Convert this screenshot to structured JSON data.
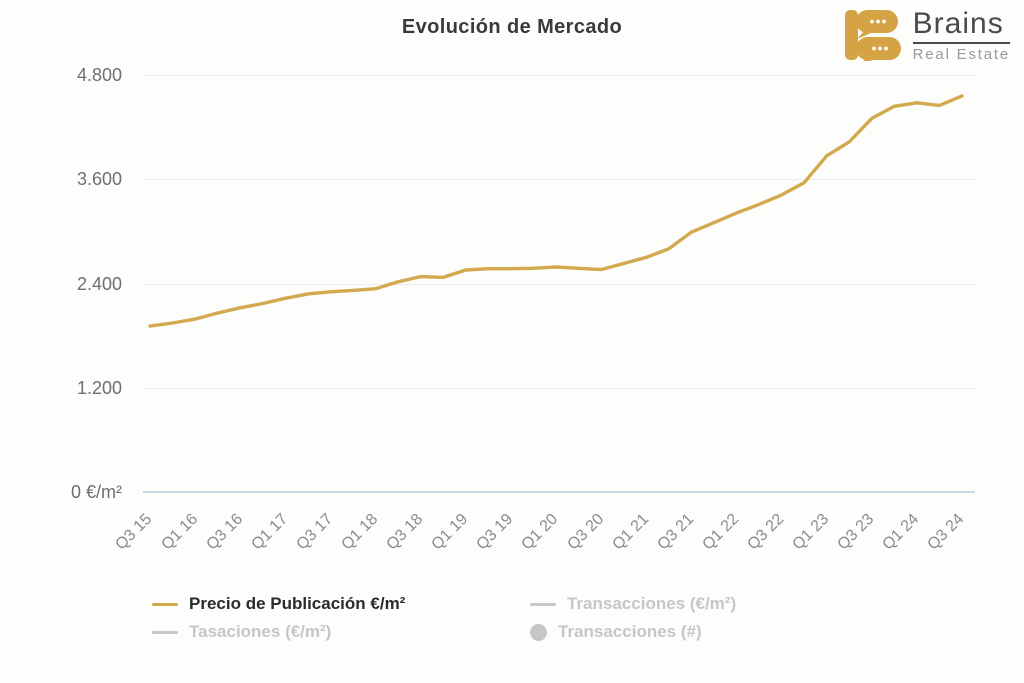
{
  "brand": {
    "name": "Brains",
    "tagline": "Real Estate",
    "logo_color": "#D5A344"
  },
  "chart_data": {
    "type": "line",
    "title": "Evolución de Mercado",
    "ylim": [
      0,
      4800
    ],
    "grid": true,
    "legend_position": "bottom",
    "y_ticks": [
      {
        "value": 4800,
        "label": "4.800"
      },
      {
        "value": 3600,
        "label": "3.600"
      },
      {
        "value": 2400,
        "label": "2.400"
      },
      {
        "value": 1200,
        "label": "1.200"
      },
      {
        "value": 0,
        "label": "0 €/m²"
      }
    ],
    "x_tick_labels": [
      "Q3 15",
      "Q1 16",
      "Q3 16",
      "Q1 17",
      "Q3 17",
      "Q1 18",
      "Q3 18",
      "Q1 19",
      "Q3 19",
      "Q1 20",
      "Q3 20",
      "Q1 21",
      "Q3 21",
      "Q1 22",
      "Q3 22",
      "Q1 23",
      "Q3 23",
      "Q1 24",
      "Q3 24"
    ],
    "x_ticks_every_n_points": 2,
    "series": [
      {
        "name": "Precio de Publicación €/m²",
        "color": "#D2A94E",
        "visible": true,
        "values": [
          1910,
          1945,
          1990,
          2060,
          2120,
          2170,
          2230,
          2280,
          2305,
          2320,
          2340,
          2420,
          2480,
          2470,
          2555,
          2570,
          2570,
          2575,
          2590,
          2575,
          2560,
          2630,
          2700,
          2800,
          2990,
          3100,
          3210,
          3310,
          3420,
          3560,
          3870,
          4030,
          4300,
          4440,
          4480,
          4450,
          4560
        ]
      }
    ]
  },
  "legend": {
    "items": [
      {
        "label": "Precio de Publicación €/m²",
        "marker": "line",
        "color": "#D2A94E",
        "active": true
      },
      {
        "label": "Transacciones (€/m²)",
        "marker": "line",
        "color": "#C7C7C7",
        "active": false
      },
      {
        "label": "Tasaciones (€/m²)",
        "marker": "line",
        "color": "#C7C7C7",
        "active": false
      },
      {
        "label": "Transacciones (#)",
        "marker": "circle",
        "color": "#C7C7C7",
        "active": false
      }
    ]
  }
}
